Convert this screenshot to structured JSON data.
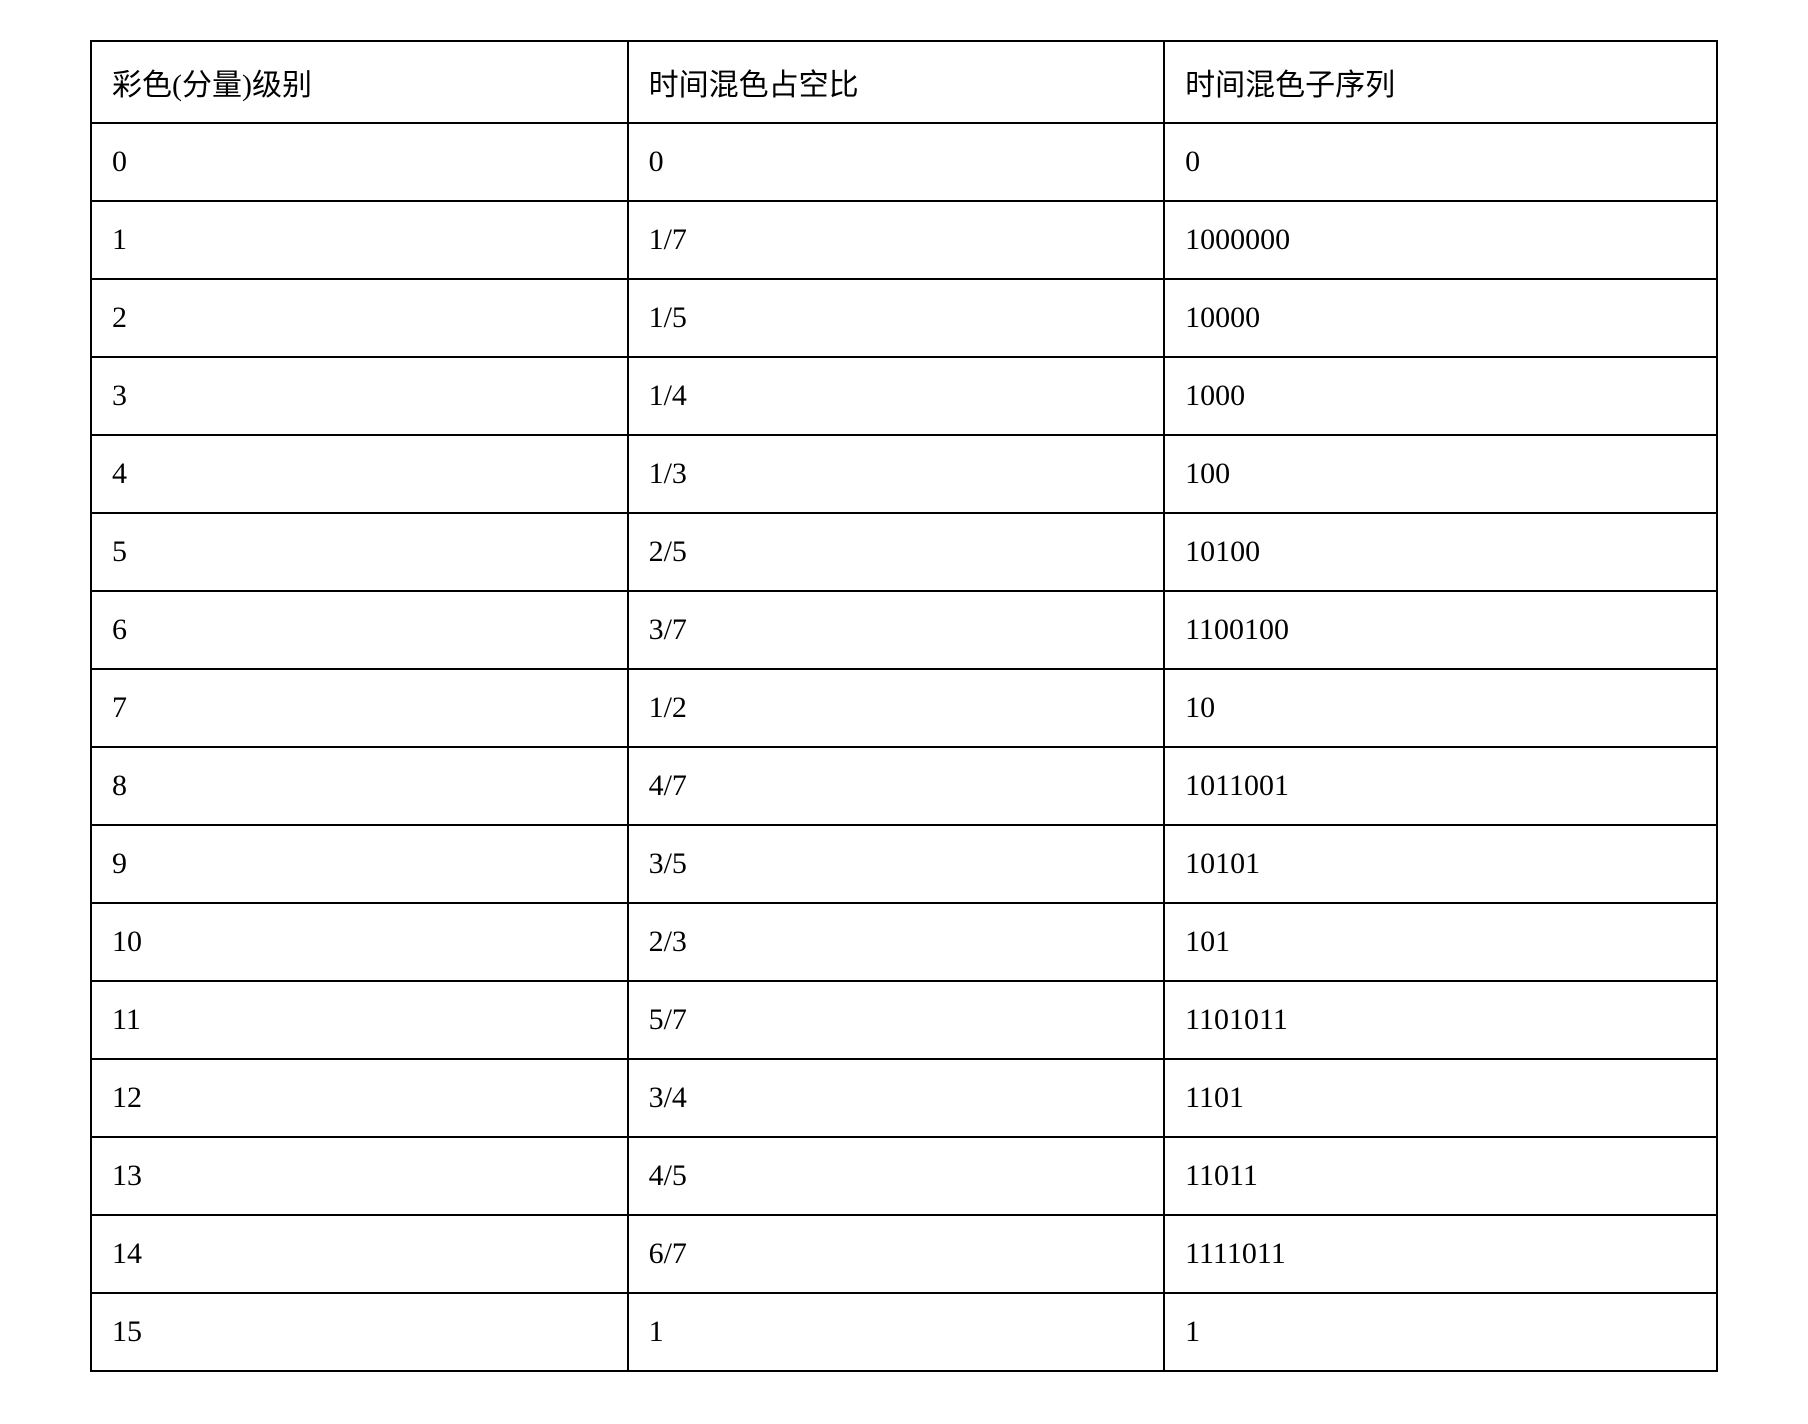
{
  "table": {
    "type": "table",
    "border_color": "#000000",
    "border_width": 2,
    "background_color": "#ffffff",
    "text_color": "#000000",
    "font_size_pt": 22,
    "font_family": "Times New Roman / SimSun",
    "column_widths_pct": [
      33,
      33,
      34
    ],
    "columns": [
      "彩色(分量)级别",
      "时间混色占空比",
      "时间混色子序列"
    ],
    "rows": [
      [
        "0",
        "0",
        "0"
      ],
      [
        "1",
        "1/7",
        "1000000"
      ],
      [
        "2",
        "1/5",
        "10000"
      ],
      [
        "3",
        "1/4",
        "1000"
      ],
      [
        "4",
        "1/3",
        "100"
      ],
      [
        "5",
        "2/5",
        "10100"
      ],
      [
        "6",
        "3/7",
        "1100100"
      ],
      [
        "7",
        "1/2",
        "10"
      ],
      [
        "8",
        "4/7",
        "1011001"
      ],
      [
        "9",
        "3/5",
        "10101"
      ],
      [
        "10",
        "2/3",
        "101"
      ],
      [
        "11",
        "5/7",
        "1101011"
      ],
      [
        "12",
        "3/4",
        "1101"
      ],
      [
        "13",
        "4/5",
        "11011"
      ],
      [
        "14",
        "6/7",
        "1111011"
      ],
      [
        "15",
        "1",
        "1"
      ]
    ]
  }
}
